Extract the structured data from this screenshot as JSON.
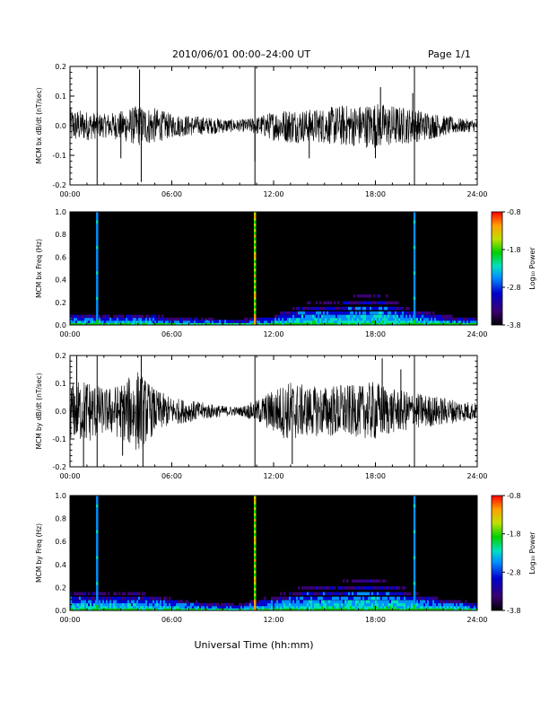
{
  "header": {
    "date_range": "2010/06/01  00:00–24:00 UT",
    "page": "Page 1/1"
  },
  "footer": {
    "xlabel": "Universal Time (hh:mm)"
  },
  "colorbar": {
    "label": "Log₁₀ Power",
    "ticks": [
      "-0.8",
      "-1.8",
      "-2.8",
      "-3.8"
    ],
    "range": [
      -3.8,
      -0.8
    ]
  },
  "colors": {
    "trace": "#000000",
    "spectrogram_background": "#000000",
    "colormap": [
      "#000000",
      "#3a0070",
      "#0000d0",
      "#0090ff",
      "#00e0c0",
      "#00d000",
      "#c0e000",
      "#ffa000",
      "#ff0000"
    ]
  },
  "chart_data": [
    {
      "type": "line",
      "name": "bx-timeseries",
      "ylabel": "MCM bx dB/dt (nT/sec)",
      "xlabel": "",
      "xlim": [
        "00:00",
        "24:00"
      ],
      "ylim": [
        -0.2,
        0.2
      ],
      "x_ticks": [
        "00:00",
        "06:00",
        "12:00",
        "18:00",
        "24:00"
      ],
      "y_ticks": [
        "-0.2",
        "-0.1",
        "0.0",
        "0.1",
        "0.2"
      ],
      "event_markers_hours": [
        1.6,
        10.9,
        20.3
      ],
      "envelope": {
        "hours": [
          0,
          1,
          2,
          3,
          4,
          5,
          6,
          7,
          8,
          9,
          10,
          11,
          12,
          13,
          14,
          15,
          16,
          17,
          18,
          19,
          20,
          21,
          22,
          23,
          24
        ],
        "amplitude": [
          0.06,
          0.05,
          0.04,
          0.05,
          0.07,
          0.06,
          0.04,
          0.035,
          0.03,
          0.025,
          0.02,
          0.03,
          0.05,
          0.06,
          0.055,
          0.06,
          0.07,
          0.07,
          0.08,
          0.07,
          0.06,
          0.05,
          0.035,
          0.025,
          0.02
        ]
      },
      "spikes": [
        {
          "hour": 4.1,
          "value": 0.19
        },
        {
          "hour": 4.2,
          "value": -0.19
        },
        {
          "hour": 3.0,
          "value": -0.11
        },
        {
          "hour": 10.9,
          "value": -0.12
        },
        {
          "hour": 14.1,
          "value": -0.11
        },
        {
          "hour": 18.0,
          "value": -0.11
        },
        {
          "hour": 18.3,
          "value": 0.13
        },
        {
          "hour": 20.2,
          "value": 0.11
        }
      ]
    },
    {
      "type": "heatmap",
      "name": "bx-spectrogram",
      "ylabel": "MCM bx Freq (Hz)",
      "xlabel": "",
      "xlim": [
        "00:00",
        "24:00"
      ],
      "ylim": [
        0.0,
        1.0
      ],
      "x_ticks": [
        "00:00",
        "06:00",
        "12:00",
        "18:00",
        "24:00"
      ],
      "y_ticks": [
        "0.0",
        "0.2",
        "0.4",
        "0.6",
        "0.8",
        "1.0"
      ],
      "colorbar_range": [
        -3.8,
        -0.8
      ],
      "event_markers_hours": [
        1.6,
        10.9,
        20.3
      ],
      "broadband_activity": {
        "hours": [
          0,
          2,
          4,
          6,
          8,
          10,
          12,
          14,
          16,
          18,
          20,
          22,
          24
        ],
        "max_freq_hz": [
          0.1,
          0.08,
          0.1,
          0.06,
          0.05,
          0.04,
          0.08,
          0.2,
          0.22,
          0.3,
          0.15,
          0.08,
          0.05
        ]
      }
    },
    {
      "type": "line",
      "name": "by-timeseries",
      "ylabel": "MCM by dB/dt (nT/sec)",
      "xlabel": "",
      "xlim": [
        "00:00",
        "24:00"
      ],
      "ylim": [
        -0.2,
        0.2
      ],
      "x_ticks": [
        "00:00",
        "06:00",
        "12:00",
        "18:00",
        "24:00"
      ],
      "y_ticks": [
        "-0.2",
        "-0.1",
        "0.0",
        "0.1",
        "0.2"
      ],
      "event_markers_hours": [
        1.6,
        10.9,
        20.3
      ],
      "envelope": {
        "hours": [
          0,
          1,
          2,
          3,
          4,
          5,
          6,
          7,
          8,
          9,
          10,
          11,
          12,
          13,
          14,
          15,
          16,
          17,
          18,
          19,
          20,
          21,
          22,
          23,
          24
        ],
        "amplitude": [
          0.1,
          0.12,
          0.08,
          0.1,
          0.15,
          0.08,
          0.05,
          0.04,
          0.03,
          0.02,
          0.015,
          0.04,
          0.08,
          0.11,
          0.09,
          0.09,
          0.1,
          0.09,
          0.11,
          0.08,
          0.07,
          0.06,
          0.05,
          0.04,
          0.03
        ]
      },
      "spikes": [
        {
          "hour": 0.4,
          "value": 0.2
        },
        {
          "hour": 0.8,
          "value": -0.2
        },
        {
          "hour": 3.1,
          "value": -0.16
        },
        {
          "hour": 4.2,
          "value": 0.2
        },
        {
          "hour": 4.3,
          "value": -0.2
        },
        {
          "hour": 13.1,
          "value": -0.19
        },
        {
          "hour": 18.4,
          "value": 0.19
        },
        {
          "hour": 19.5,
          "value": 0.15
        }
      ]
    },
    {
      "type": "heatmap",
      "name": "by-spectrogram",
      "ylabel": "MCM by Freq (Hz)",
      "xlabel": "",
      "xlim": [
        "00:00",
        "24:00"
      ],
      "ylim": [
        0.0,
        1.0
      ],
      "x_ticks": [
        "00:00",
        "06:00",
        "12:00",
        "18:00",
        "24:00"
      ],
      "y_ticks": [
        "0.0",
        "0.2",
        "0.4",
        "0.6",
        "0.8",
        "1.0"
      ],
      "colorbar_range": [
        -3.8,
        -0.8
      ],
      "event_markers_hours": [
        1.6,
        10.9,
        20.3
      ],
      "broadband_activity": {
        "hours": [
          0,
          2,
          4,
          6,
          8,
          10,
          12,
          14,
          16,
          18,
          20,
          22,
          24
        ],
        "max_freq_hz": [
          0.18,
          0.15,
          0.16,
          0.1,
          0.06,
          0.05,
          0.12,
          0.22,
          0.25,
          0.3,
          0.18,
          0.1,
          0.06
        ]
      }
    }
  ]
}
